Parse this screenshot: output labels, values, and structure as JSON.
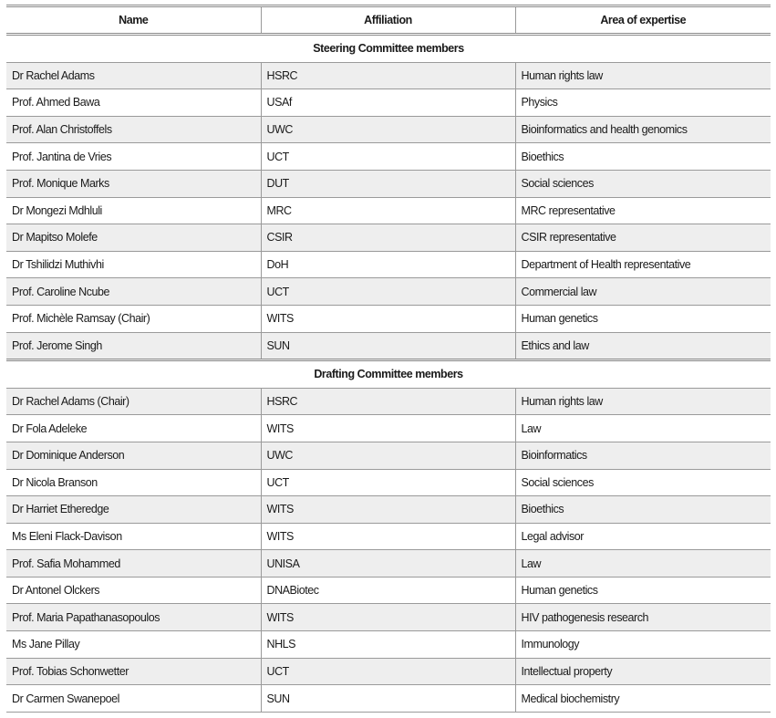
{
  "headers": {
    "name": "Name",
    "affiliation": "Affiliation",
    "expertise": "Area of expertise"
  },
  "sections": [
    {
      "title": "Steering Committee members",
      "rows": [
        [
          "Dr Rachel Adams",
          "HSRC",
          "Human rights law"
        ],
        [
          "Prof. Ahmed Bawa",
          "USAf",
          "Physics"
        ],
        [
          "Prof. Alan Christoffels",
          "UWC",
          "Bioinformatics and health genomics"
        ],
        [
          "Prof. Jantina de Vries",
          "UCT",
          "Bioethics"
        ],
        [
          "Prof. Monique Marks",
          "DUT",
          "Social sciences"
        ],
        [
          "Dr Mongezi Mdhluli",
          "MRC",
          "MRC representative"
        ],
        [
          "Dr Mapitso Molefe",
          "CSIR",
          "CSIR representative"
        ],
        [
          "Dr Tshilidzi Muthivhi",
          "DoH",
          "Department of Health representative"
        ],
        [
          "Prof. Caroline Ncube",
          "UCT",
          "Commercial law"
        ],
        [
          "Prof. Michèle Ramsay (Chair)",
          "WITS",
          "Human genetics"
        ],
        [
          "Prof. Jerome Singh",
          "SUN",
          "Ethics and law"
        ]
      ]
    },
    {
      "title": "Drafting Committee members",
      "rows": [
        [
          "Dr Rachel Adams (Chair)",
          "HSRC",
          "Human rights law"
        ],
        [
          "Dr Fola Adeleke",
          "WITS",
          "Law"
        ],
        [
          "Dr Dominique Anderson",
          "UWC",
          "Bioinformatics"
        ],
        [
          "Dr Nicola Branson",
          "UCT",
          "Social sciences"
        ],
        [
          "Dr Harriet Etheredge",
          "WITS",
          "Bioethics"
        ],
        [
          "Ms Eleni Flack-Davison",
          "WITS",
          "Legal advisor"
        ],
        [
          "Prof. Safia Mohammed",
          "UNISA",
          "Law"
        ],
        [
          "Dr Antonel Olckers",
          "DNABiotec",
          "Human genetics"
        ],
        [
          "Prof. Maria Papathanasopoulos",
          "WITS",
          "HIV pathogenesis research"
        ],
        [
          "Ms Jane Pillay",
          "NHLS",
          "Immunology"
        ],
        [
          "Prof. Tobias Schonwetter",
          "UCT",
          "Intellectual property"
        ],
        [
          "Dr Carmen Swanepoel",
          "SUN",
          "Medical biochemistry"
        ]
      ]
    }
  ]
}
